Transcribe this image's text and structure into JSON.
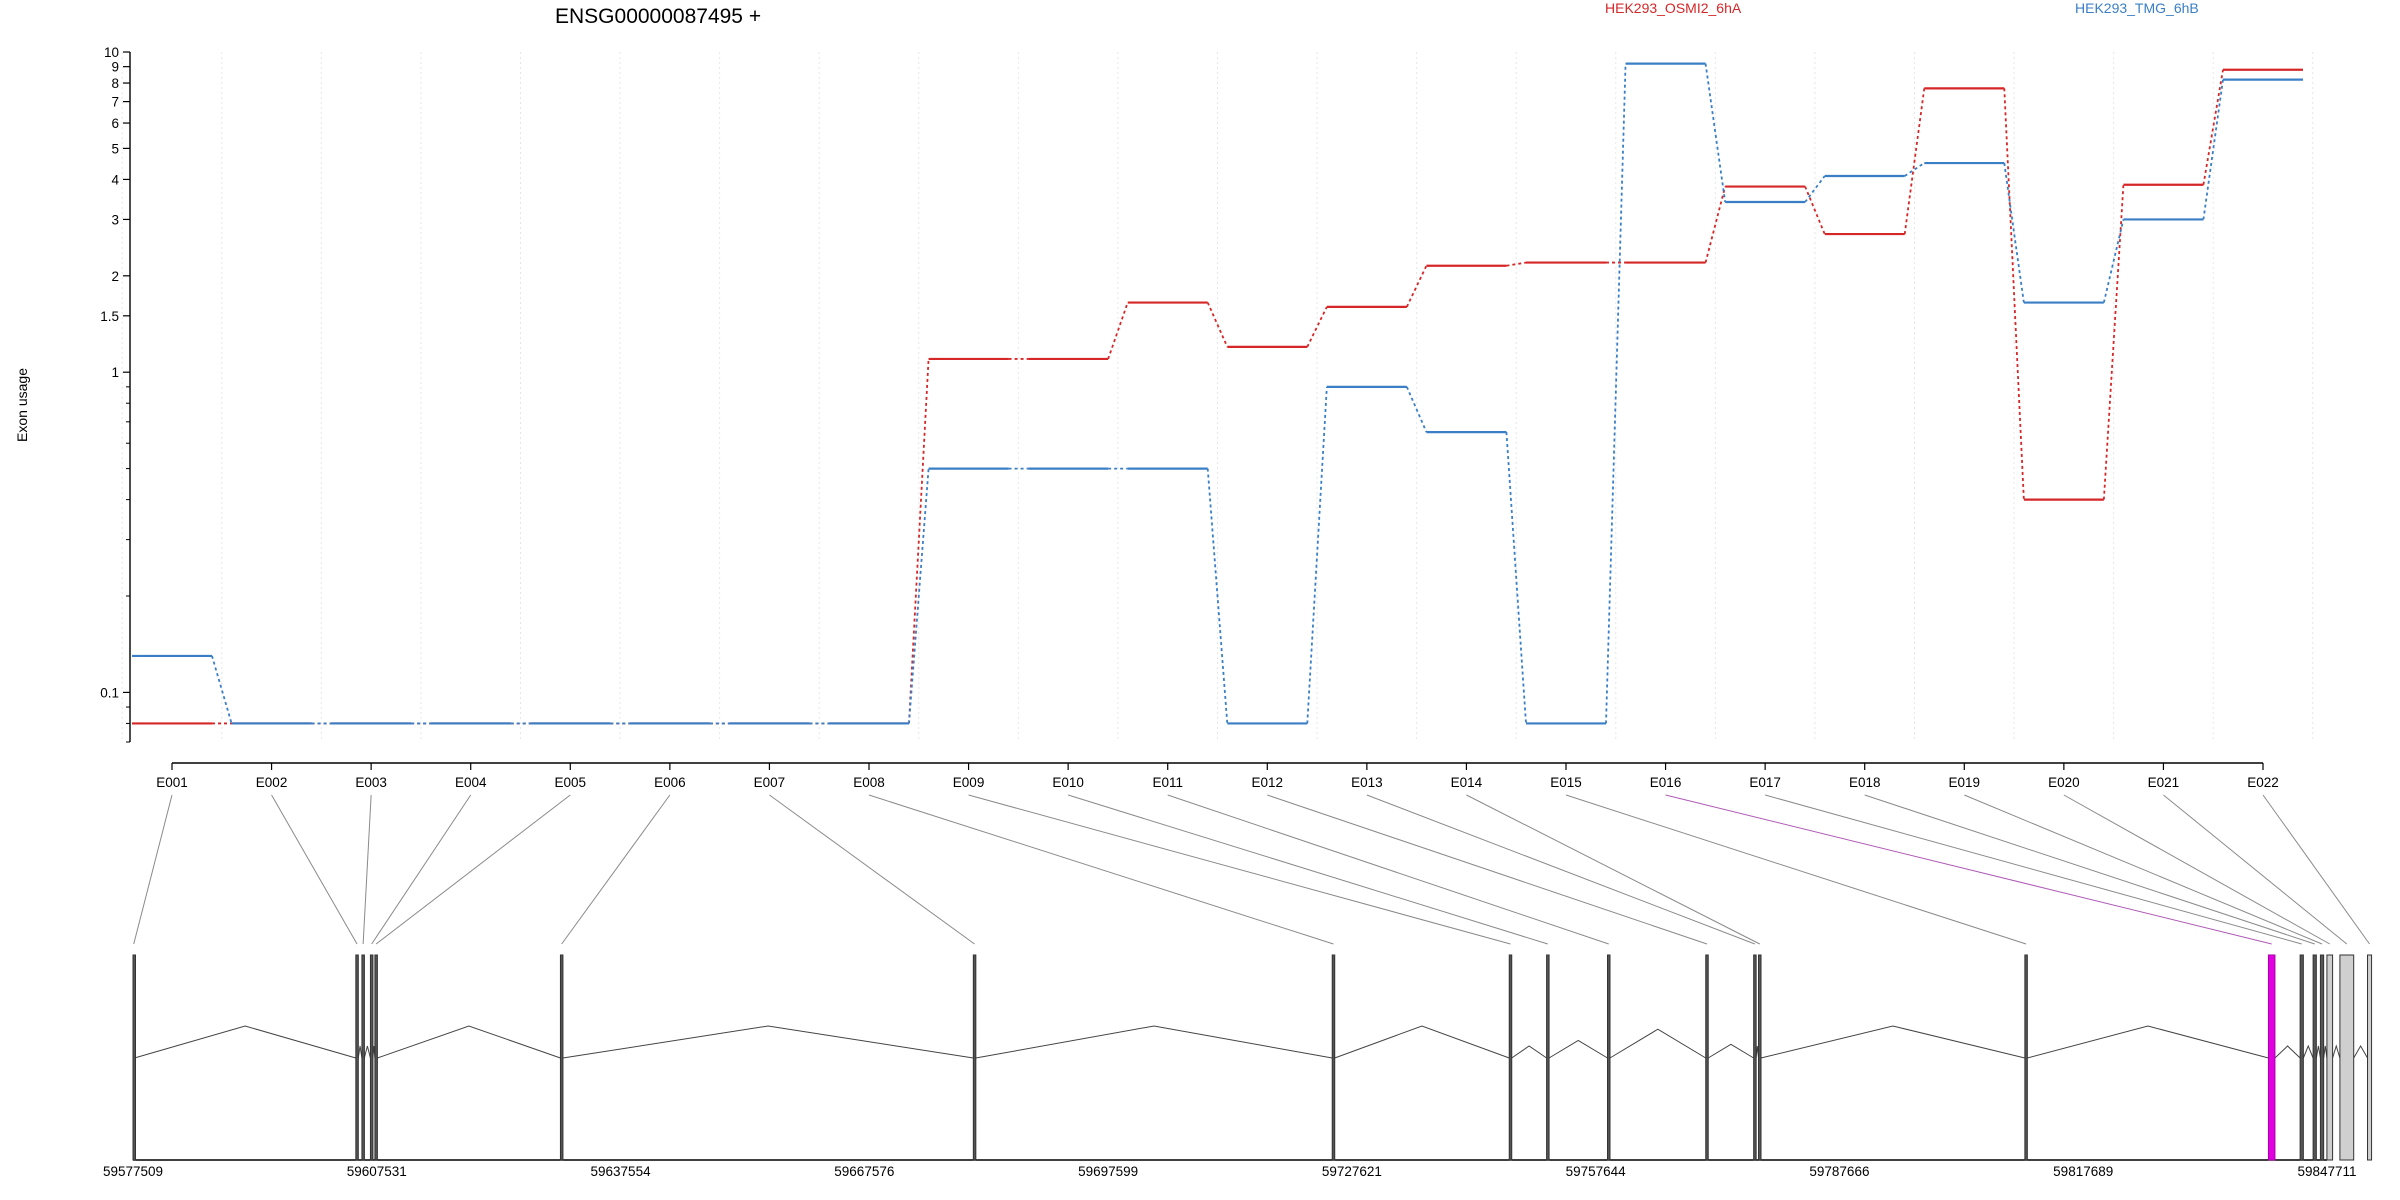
{
  "chart_data": {
    "type": "line",
    "title": "ENSG00000087495 +",
    "ylabel": "Exon usage",
    "xlabel": "",
    "yscale": "log",
    "ylim": [
      0.07,
      10
    ],
    "grid": true,
    "legend_position": "top-right",
    "y_ticks": [
      {
        "value": 0.1,
        "label": "0.1"
      },
      {
        "value": 1,
        "label": "1"
      },
      {
        "value": 1.5,
        "label": "1.5"
      },
      {
        "value": 2,
        "label": "2"
      },
      {
        "value": 3,
        "label": "3"
      },
      {
        "value": 4,
        "label": "4"
      },
      {
        "value": 5,
        "label": "5"
      },
      {
        "value": 6,
        "label": "6"
      },
      {
        "value": 7,
        "label": "7"
      },
      {
        "value": 8,
        "label": "8"
      },
      {
        "value": 9,
        "label": "9"
      },
      {
        "value": 10,
        "label": "10"
      }
    ],
    "categories": [
      "E001",
      "E002",
      "E003",
      "E004",
      "E005",
      "E006",
      "E007",
      "E008",
      "E009",
      "E010",
      "E011",
      "E012",
      "E013",
      "E014",
      "E015",
      "E016",
      "E017",
      "E018",
      "E019",
      "E020",
      "E021",
      "E022"
    ],
    "series": [
      {
        "name": "HEK293_OSMI2_6hA",
        "color": "#d62728",
        "values": [
          0.08,
          0.08,
          0.08,
          0.08,
          0.08,
          0.08,
          0.08,
          0.08,
          1.1,
          1.1,
          1.65,
          1.2,
          1.6,
          2.15,
          2.2,
          2.2,
          3.8,
          2.7,
          7.7,
          0.4,
          3.85,
          8.8
        ]
      },
      {
        "name": "HEK293_TMG_6hB",
        "color": "#3a7fc6",
        "values": [
          0.13,
          0.08,
          0.08,
          0.08,
          0.08,
          0.08,
          0.08,
          0.08,
          0.5,
          0.5,
          0.5,
          0.08,
          0.9,
          0.65,
          0.08,
          9.2,
          3.4,
          4.1,
          4.5,
          1.65,
          3.0,
          8.2
        ]
      }
    ],
    "gene_model": {
      "coordinate_labels": [
        "59577509",
        "59607531",
        "59637554",
        "59667576",
        "59697599",
        "59727621",
        "59757644",
        "59787666",
        "59817689",
        "59847711"
      ],
      "genomic_range": [
        59577509,
        59847711
      ],
      "exons": [
        {
          "id": "E001",
          "start": 59577509,
          "end": 59577690,
          "highlight": false
        },
        {
          "id": "E002",
          "start": 59604950,
          "end": 59605250,
          "highlight": false
        },
        {
          "id": "E003",
          "start": 59605700,
          "end": 59606000,
          "highlight": false
        },
        {
          "id": "E004",
          "start": 59606750,
          "end": 59607050,
          "highlight": false
        },
        {
          "id": "E005",
          "start": 59607300,
          "end": 59607600,
          "highlight": false
        },
        {
          "id": "E006",
          "start": 59630150,
          "end": 59630450,
          "highlight": false
        },
        {
          "id": "E007",
          "start": 59681000,
          "end": 59681300,
          "highlight": false
        },
        {
          "id": "E008",
          "start": 59725200,
          "end": 59725500,
          "highlight": false
        },
        {
          "id": "E009",
          "start": 59747000,
          "end": 59747300,
          "highlight": false
        },
        {
          "id": "E010",
          "start": 59751600,
          "end": 59751900,
          "highlight": false
        },
        {
          "id": "E011",
          "start": 59759100,
          "end": 59759400,
          "highlight": false
        },
        {
          "id": "E012",
          "start": 59771200,
          "end": 59771500,
          "highlight": false
        },
        {
          "id": "E013",
          "start": 59777100,
          "end": 59777400,
          "highlight": false
        },
        {
          "id": "E014",
          "start": 59777700,
          "end": 59778000,
          "highlight": false
        },
        {
          "id": "E015",
          "start": 59810500,
          "end": 59810800,
          "highlight": false
        },
        {
          "id": "E016",
          "start": 59840500,
          "end": 59841300,
          "highlight": true
        },
        {
          "id": "E017",
          "start": 59844400,
          "end": 59844800,
          "highlight": false
        },
        {
          "id": "E018",
          "start": 59846000,
          "end": 59846400,
          "highlight": false
        },
        {
          "id": "E019",
          "start": 59846900,
          "end": 59847300,
          "highlight": false
        },
        {
          "id": "E020",
          "start": 59847700,
          "end": 59848400,
          "highlight": false
        },
        {
          "id": "E021",
          "start": 59849300,
          "end": 59851000,
          "highlight": false
        },
        {
          "id": "E022",
          "start": 59852700,
          "end": 59853200,
          "highlight": false
        }
      ]
    }
  }
}
